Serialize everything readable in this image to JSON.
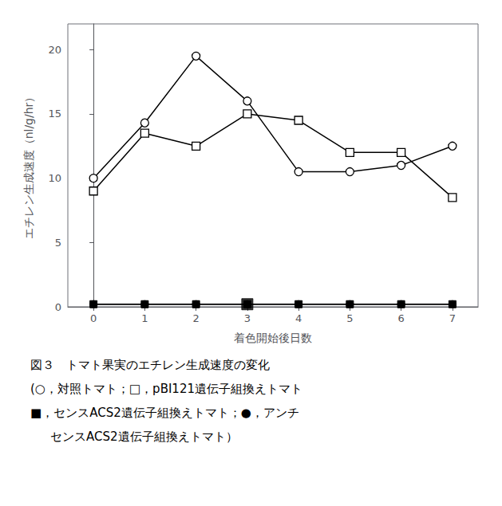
{
  "chart_data": {
    "type": "line",
    "x": [
      0,
      1,
      2,
      3,
      4,
      5,
      6,
      7
    ],
    "xlabel": "着色開始後日数",
    "ylabel": "エチレン生成速度（nl/g/hr）",
    "annotations": [
      "図３　トマト果実のエチレン生成速度の変化",
      "(○，対照トマト；□，pBI121遺伝子組換えトマト",
      "■，センスACS2遺伝子組換えトマト；●，アンチ",
      "センスACS2遺伝子組換えトマト）"
    ],
    "xlim": [
      -0.5,
      7.5
    ],
    "xticks": [
      0,
      1,
      2,
      3,
      4,
      5,
      6,
      7
    ],
    "ylim": [
      0,
      22
    ],
    "yticks": [
      0,
      5,
      10,
      15,
      20
    ],
    "grid": false,
    "series": [
      {
        "color": "#000000",
        "marker": "open_circle",
        "values": [
          10.0,
          14.3,
          19.5,
          16.0,
          10.5,
          10.5,
          11.0,
          12.5
        ]
      },
      {
        "color": "#000000",
        "marker": "open_square",
        "values": [
          9.0,
          13.5,
          12.5,
          15.0,
          14.5,
          12.0,
          12.0,
          8.5
        ]
      },
      {
        "color": "#000000",
        "marker": "filled_circle",
        "values": [
          0.2,
          0.2,
          0.2,
          0.2,
          0.2,
          0.2,
          0.2,
          0.2
        ]
      },
      {
        "color": "#000000",
        "marker": "filled_square",
        "values": [
          0.2,
          0.2,
          0.2,
          0.2,
          0.2,
          0.2,
          0.2,
          0.2
        ]
      },
      {
        "type": "scatter",
        "color": "#000000",
        "marker": "filled_square",
        "x": [
          3
        ],
        "values": [
          0.2
        ]
      }
    ]
  }
}
